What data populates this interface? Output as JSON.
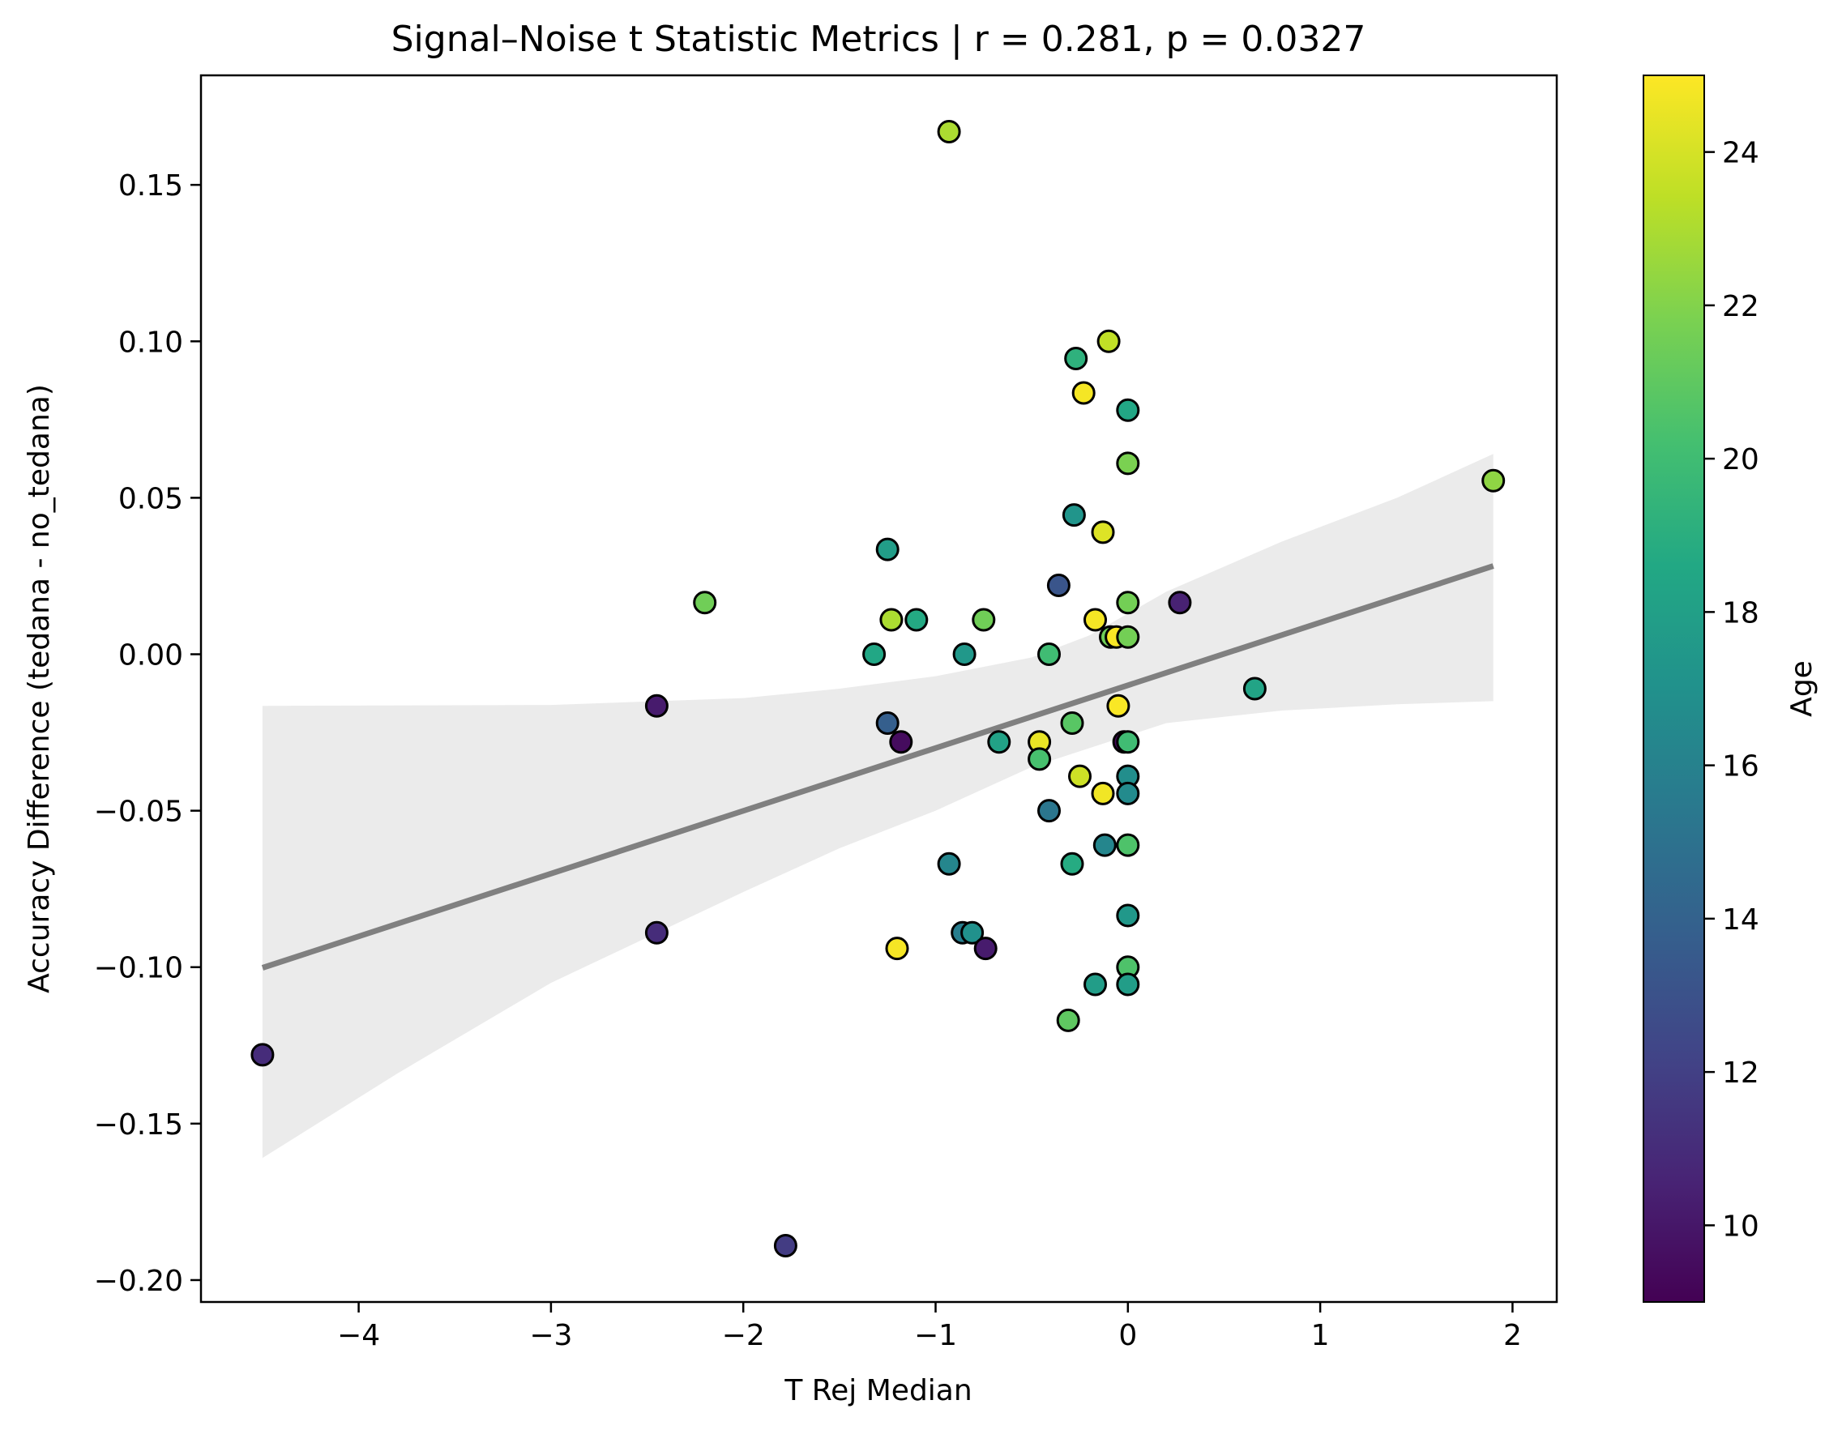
{
  "chart_data": {
    "type": "scatter",
    "title": "Signal–Noise t Statistic Metrics | r = 0.281, p = 0.0327",
    "xlabel": "T Rej Median",
    "ylabel": "Accuracy Difference (tedana - no_tedana)",
    "xlim": [
      -4.82,
      2.23
    ],
    "ylim": [
      -0.207,
      0.185
    ],
    "xticks": [
      -4,
      -3,
      -2,
      -1,
      0,
      1,
      2
    ],
    "xtick_labels": [
      "−4",
      "−3",
      "−2",
      "−1",
      "0",
      "1",
      "2"
    ],
    "yticks": [
      -0.2,
      -0.15,
      -0.1,
      -0.05,
      0.0,
      0.05,
      0.1,
      0.15
    ],
    "ytick_labels": [
      "−0.20",
      "−0.15",
      "−0.10",
      "−0.05",
      "0.00",
      "0.05",
      "0.10",
      "0.15"
    ],
    "grid": false,
    "colorbar": {
      "label": "Age",
      "colormap": "viridis",
      "range": [
        9,
        25
      ],
      "ticks": [
        10,
        12,
        14,
        16,
        18,
        20,
        22,
        24
      ],
      "tick_labels": [
        "10",
        "12",
        "14",
        "16",
        "18",
        "20",
        "22",
        "24"
      ]
    },
    "regression": {
      "color": "#808080",
      "ci_color": "#ebebeb",
      "line": [
        [
          -4.5,
          -0.1002
        ],
        [
          1.9,
          0.0282
        ]
      ],
      "ci_upper": [
        [
          -4.5,
          -0.0165
        ],
        [
          -3.0,
          -0.0162
        ],
        [
          -2.0,
          -0.014
        ],
        [
          -1.5,
          -0.011
        ],
        [
          -1.0,
          -0.007
        ],
        [
          -0.5,
          -0.001
        ],
        [
          -0.2,
          0.006
        ],
        [
          0.2,
          0.02
        ],
        [
          0.8,
          0.036
        ],
        [
          1.4,
          0.05
        ],
        [
          1.9,
          0.064
        ]
      ],
      "ci_lower": [
        [
          -4.5,
          -0.161
        ],
        [
          -3.8,
          -0.134
        ],
        [
          -3.0,
          -0.105
        ],
        [
          -2.0,
          -0.076
        ],
        [
          -1.5,
          -0.062
        ],
        [
          -1.0,
          -0.05
        ],
        [
          -0.5,
          -0.036
        ],
        [
          -0.2,
          -0.03
        ],
        [
          0.2,
          -0.022
        ],
        [
          0.8,
          -0.018
        ],
        [
          1.4,
          -0.016
        ],
        [
          1.9,
          -0.015
        ]
      ]
    },
    "points": [
      {
        "x": -4.5,
        "y": -0.128,
        "age": 11.0
      },
      {
        "x": -2.45,
        "y": -0.0165,
        "age": 10.2
      },
      {
        "x": -2.45,
        "y": -0.089,
        "age": 11.0
      },
      {
        "x": -2.2,
        "y": 0.0165,
        "age": 21.5
      },
      {
        "x": -1.78,
        "y": -0.189,
        "age": 11.8
      },
      {
        "x": -1.32,
        "y": 0.0,
        "age": 18.5
      },
      {
        "x": -1.25,
        "y": 0.0335,
        "age": 17.8
      },
      {
        "x": -1.25,
        "y": -0.022,
        "age": 13.8
      },
      {
        "x": -1.23,
        "y": 0.011,
        "age": 23.0
      },
      {
        "x": -1.2,
        "y": -0.094,
        "age": 24.8
      },
      {
        "x": -1.18,
        "y": -0.028,
        "age": 9.5
      },
      {
        "x": -1.1,
        "y": 0.011,
        "age": 18.7
      },
      {
        "x": -0.93,
        "y": 0.167,
        "age": 23.0
      },
      {
        "x": -0.93,
        "y": -0.067,
        "age": 16.3
      },
      {
        "x": -0.86,
        "y": -0.089,
        "age": 15.8
      },
      {
        "x": -0.85,
        "y": 0.0,
        "age": 17.5
      },
      {
        "x": -0.81,
        "y": -0.089,
        "age": 17.0
      },
      {
        "x": -0.75,
        "y": 0.011,
        "age": 21.5
      },
      {
        "x": -0.74,
        "y": -0.094,
        "age": 10.2
      },
      {
        "x": -0.67,
        "y": -0.028,
        "age": 18.2
      },
      {
        "x": -0.46,
        "y": -0.028,
        "age": 24.5
      },
      {
        "x": -0.46,
        "y": -0.0335,
        "age": 20.3
      },
      {
        "x": -0.41,
        "y": 0.0,
        "age": 20.0
      },
      {
        "x": -0.41,
        "y": -0.05,
        "age": 15.3
      },
      {
        "x": -0.36,
        "y": 0.022,
        "age": 13.2
      },
      {
        "x": -0.31,
        "y": -0.117,
        "age": 21.0
      },
      {
        "x": -0.29,
        "y": -0.067,
        "age": 18.8
      },
      {
        "x": -0.29,
        "y": -0.022,
        "age": 20.8
      },
      {
        "x": -0.28,
        "y": 0.0445,
        "age": 17.3
      },
      {
        "x": -0.27,
        "y": 0.0945,
        "age": 19.2
      },
      {
        "x": -0.25,
        "y": -0.039,
        "age": 23.8
      },
      {
        "x": -0.23,
        "y": 0.0835,
        "age": 24.8
      },
      {
        "x": -0.17,
        "y": 0.011,
        "age": 24.8
      },
      {
        "x": -0.17,
        "y": -0.1055,
        "age": 17.8
      },
      {
        "x": -0.13,
        "y": -0.0445,
        "age": 24.7
      },
      {
        "x": -0.13,
        "y": 0.039,
        "age": 24.2
      },
      {
        "x": -0.12,
        "y": -0.061,
        "age": 16.3
      },
      {
        "x": -0.1,
        "y": 0.1,
        "age": 23.5
      },
      {
        "x": -0.09,
        "y": 0.0055,
        "age": 21.5
      },
      {
        "x": -0.06,
        "y": 0.0055,
        "age": 24.9
      },
      {
        "x": -0.05,
        "y": -0.0165,
        "age": 24.9
      },
      {
        "x": -0.02,
        "y": -0.028,
        "age": 9.3
      },
      {
        "x": 0.0,
        "y": 0.078,
        "age": 18.5
      },
      {
        "x": 0.0,
        "y": 0.061,
        "age": 21.8
      },
      {
        "x": 0.0,
        "y": 0.0165,
        "age": 21.6
      },
      {
        "x": 0.0,
        "y": 0.0055,
        "age": 21.6
      },
      {
        "x": 0.0,
        "y": -0.028,
        "age": 20.0
      },
      {
        "x": 0.0,
        "y": -0.039,
        "age": 16.8
      },
      {
        "x": 0.0,
        "y": -0.0445,
        "age": 16.6
      },
      {
        "x": 0.0,
        "y": -0.061,
        "age": 20.5
      },
      {
        "x": 0.0,
        "y": -0.0835,
        "age": 17.5
      },
      {
        "x": 0.0,
        "y": -0.1,
        "age": 20.5
      },
      {
        "x": 0.0,
        "y": -0.1055,
        "age": 17.8
      },
      {
        "x": 0.27,
        "y": 0.0165,
        "age": 10.5
      },
      {
        "x": 0.66,
        "y": -0.011,
        "age": 18.3
      },
      {
        "x": 1.9,
        "y": 0.0555,
        "age": 22.3
      }
    ]
  }
}
